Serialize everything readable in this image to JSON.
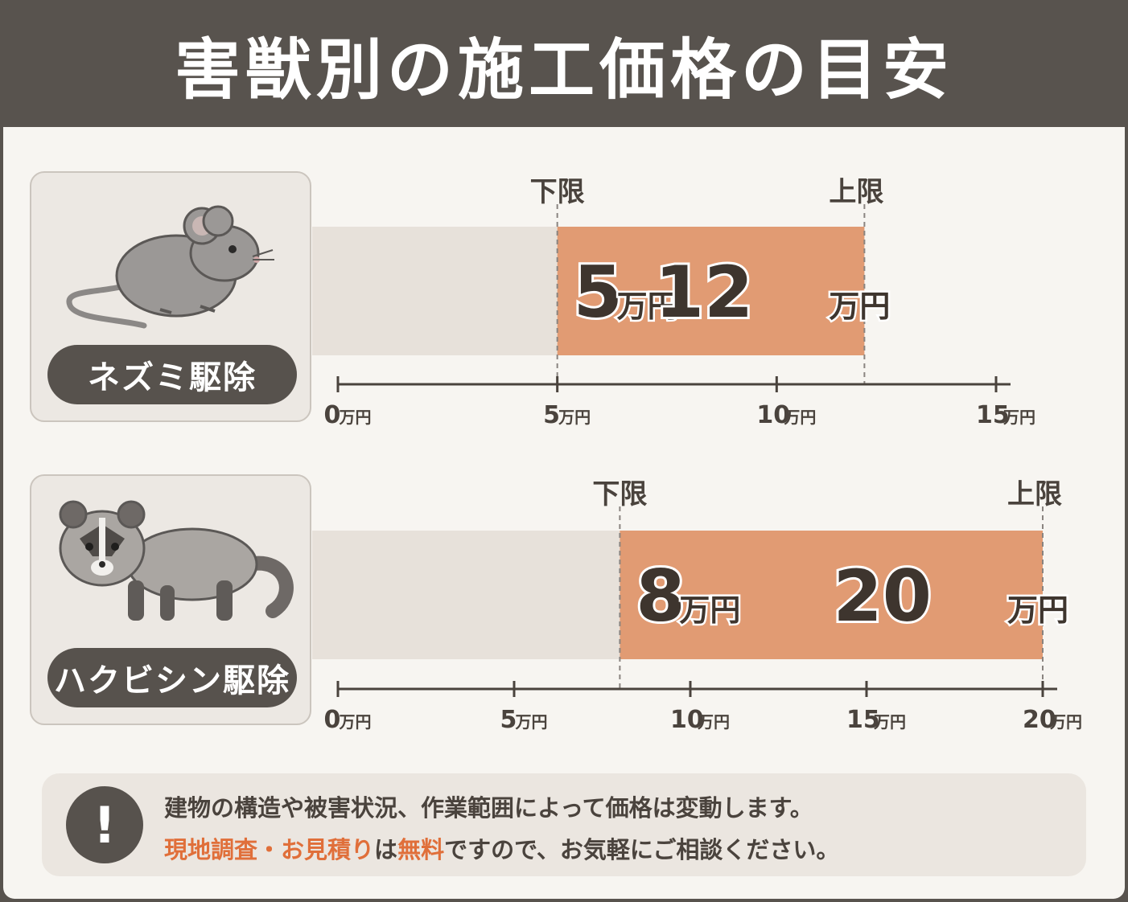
{
  "title": "害獣別の施工価格の目安",
  "colors": {
    "bar": "#e19b73",
    "base": "#e7e1da",
    "accent": "#e06f3a",
    "dark": "#57524d"
  },
  "labels": {
    "lower": "下限",
    "upper": "上限",
    "unit": "万円"
  },
  "chart_data": [
    {
      "type": "bar",
      "category": "ネズミ駆除",
      "icon": "mouse-icon",
      "lower": 5,
      "upper": 12,
      "lower_label": "5",
      "upper_label": "12",
      "xlim": [
        0,
        15
      ],
      "ticks": [
        0,
        5,
        10,
        15
      ]
    },
    {
      "type": "bar",
      "category": "ハクビシン駆除",
      "icon": "civet-icon",
      "lower": 8,
      "upper": 20,
      "lower_label": "8",
      "upper_label": "20",
      "xlim": [
        0,
        20
      ],
      "ticks": [
        0,
        5,
        10,
        15,
        20
      ]
    }
  ],
  "note": {
    "icon": "exclamation-icon",
    "symbol": "!",
    "line1": "建物の構造や被害状況、作業範囲によって価格は変動します。",
    "line2_parts": [
      "現地調査",
      "・",
      "お見積り",
      "は",
      "無料",
      "ですので、お気軽にご相談ください。"
    ]
  }
}
